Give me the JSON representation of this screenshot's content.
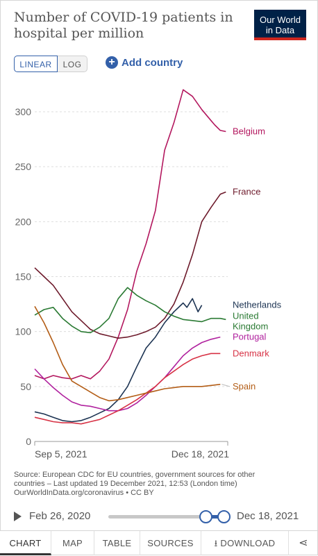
{
  "header": {
    "title": "Number of COVID-19 patients in hospital per million",
    "logo_line1": "Our World",
    "logo_line2": "in Data"
  },
  "controls": {
    "linear_label": "LINEAR",
    "log_label": "LOG",
    "add_country_label": "Add country",
    "add_icon": "plus-circle-icon"
  },
  "footer": {
    "source_line1": "Source: European CDC for EU countries, government sources for other",
    "source_line2": "countries – Last updated 19 December 2021, 12:53 (London time)",
    "source_line3": "OurWorldInData.org/coronavirus • CC BY"
  },
  "timeline": {
    "start_label": "Feb 26, 2020",
    "end_label": "Dec 18, 2021",
    "play_icon": "play-icon"
  },
  "tabs": [
    {
      "label": "CHART",
      "active": true
    },
    {
      "label": "MAP"
    },
    {
      "label": "TABLE"
    },
    {
      "label": "SOURCES"
    },
    {
      "label": "DOWNLOAD",
      "icon": "download-icon"
    },
    {
      "label": "",
      "icon": "share-icon"
    }
  ],
  "chart_data": {
    "type": "line",
    "title": "Number of COVID-19 patients in hospital per million",
    "x_start": "Sep 5, 2021",
    "x_end": "Dec 18, 2021",
    "x_tick_labels": [
      "Sep 5, 2021",
      "Dec 18, 2021"
    ],
    "ylim": [
      0,
      320
    ],
    "y_ticks": [
      0,
      50,
      100,
      150,
      200,
      250,
      300
    ],
    "grid": true,
    "legend_placement": "inline-right",
    "series": [
      {
        "name": "Belgium",
        "color": "#b3175e",
        "label_y": 282,
        "days": [
          0,
          5,
          10,
          15,
          20,
          25,
          30,
          35,
          40,
          45,
          50,
          55,
          60,
          65,
          70,
          75,
          80,
          85,
          90,
          95,
          97,
          100,
          103
        ],
        "values": [
          60,
          57,
          60,
          58,
          57,
          60,
          57,
          64,
          75,
          95,
          120,
          155,
          180,
          210,
          265,
          290,
          320,
          314,
          302,
          292,
          288,
          283,
          282
        ]
      },
      {
        "name": "France",
        "color": "#6d1a2b",
        "label_y": 227,
        "days": [
          0,
          5,
          10,
          15,
          20,
          25,
          30,
          35,
          40,
          45,
          50,
          55,
          60,
          65,
          70,
          75,
          80,
          85,
          90,
          95,
          100,
          103
        ],
        "values": [
          158,
          150,
          142,
          130,
          118,
          110,
          102,
          98,
          96,
          94,
          95,
          97,
          100,
          104,
          112,
          125,
          145,
          170,
          200,
          213,
          225,
          227
        ]
      },
      {
        "name": "Netherlands",
        "color": "#1c3352",
        "label_y": 124,
        "days": [
          0,
          5,
          10,
          15,
          20,
          25,
          30,
          35,
          40,
          45,
          50,
          55,
          60,
          65,
          70,
          75,
          80,
          82,
          85,
          88,
          90
        ],
        "values": [
          27,
          25,
          22,
          19,
          18,
          19,
          22,
          26,
          30,
          38,
          50,
          68,
          85,
          95,
          108,
          118,
          126,
          122,
          130,
          118,
          124
        ]
      },
      {
        "name": "United Kingdom",
        "color": "#2a7a33",
        "label_y": 111,
        "days": [
          0,
          5,
          10,
          15,
          20,
          25,
          30,
          35,
          40,
          45,
          50,
          55,
          60,
          65,
          70,
          75,
          80,
          85,
          90,
          95,
          100,
          103
        ],
        "values": [
          115,
          120,
          122,
          112,
          105,
          100,
          99,
          104,
          112,
          130,
          140,
          133,
          128,
          124,
          118,
          114,
          111,
          110,
          109,
          112,
          112,
          111
        ]
      },
      {
        "name": "Portugal",
        "color": "#b0219e",
        "label_y": 95,
        "days": [
          0,
          5,
          10,
          15,
          20,
          25,
          30,
          35,
          40,
          45,
          50,
          55,
          60,
          65,
          70,
          75,
          80,
          85,
          90,
          95,
          100
        ],
        "values": [
          66,
          57,
          49,
          42,
          36,
          33,
          32,
          30,
          28,
          28,
          30,
          35,
          42,
          50,
          58,
          68,
          78,
          85,
          90,
          93,
          95
        ]
      },
      {
        "name": "Denmark",
        "color": "#d73245",
        "label_y": 80,
        "days": [
          0,
          5,
          10,
          15,
          20,
          25,
          30,
          35,
          40,
          45,
          50,
          55,
          60,
          65,
          70,
          75,
          80,
          85,
          90,
          95,
          100
        ],
        "values": [
          22,
          20,
          18,
          17,
          17,
          16,
          18,
          20,
          24,
          28,
          33,
          38,
          44,
          50,
          58,
          64,
          70,
          75,
          78,
          80,
          80
        ]
      },
      {
        "name": "Spain",
        "color": "#b35d16",
        "label_y": 50,
        "days": [
          0,
          5,
          10,
          15,
          20,
          25,
          30,
          35,
          40,
          45,
          50,
          55,
          60,
          65,
          70,
          75,
          80,
          85,
          90,
          95,
          100
        ],
        "values": [
          123,
          108,
          90,
          70,
          55,
          50,
          45,
          40,
          37,
          38,
          40,
          42,
          44,
          46,
          48,
          49,
          50,
          50,
          50,
          51,
          52
        ]
      }
    ]
  }
}
